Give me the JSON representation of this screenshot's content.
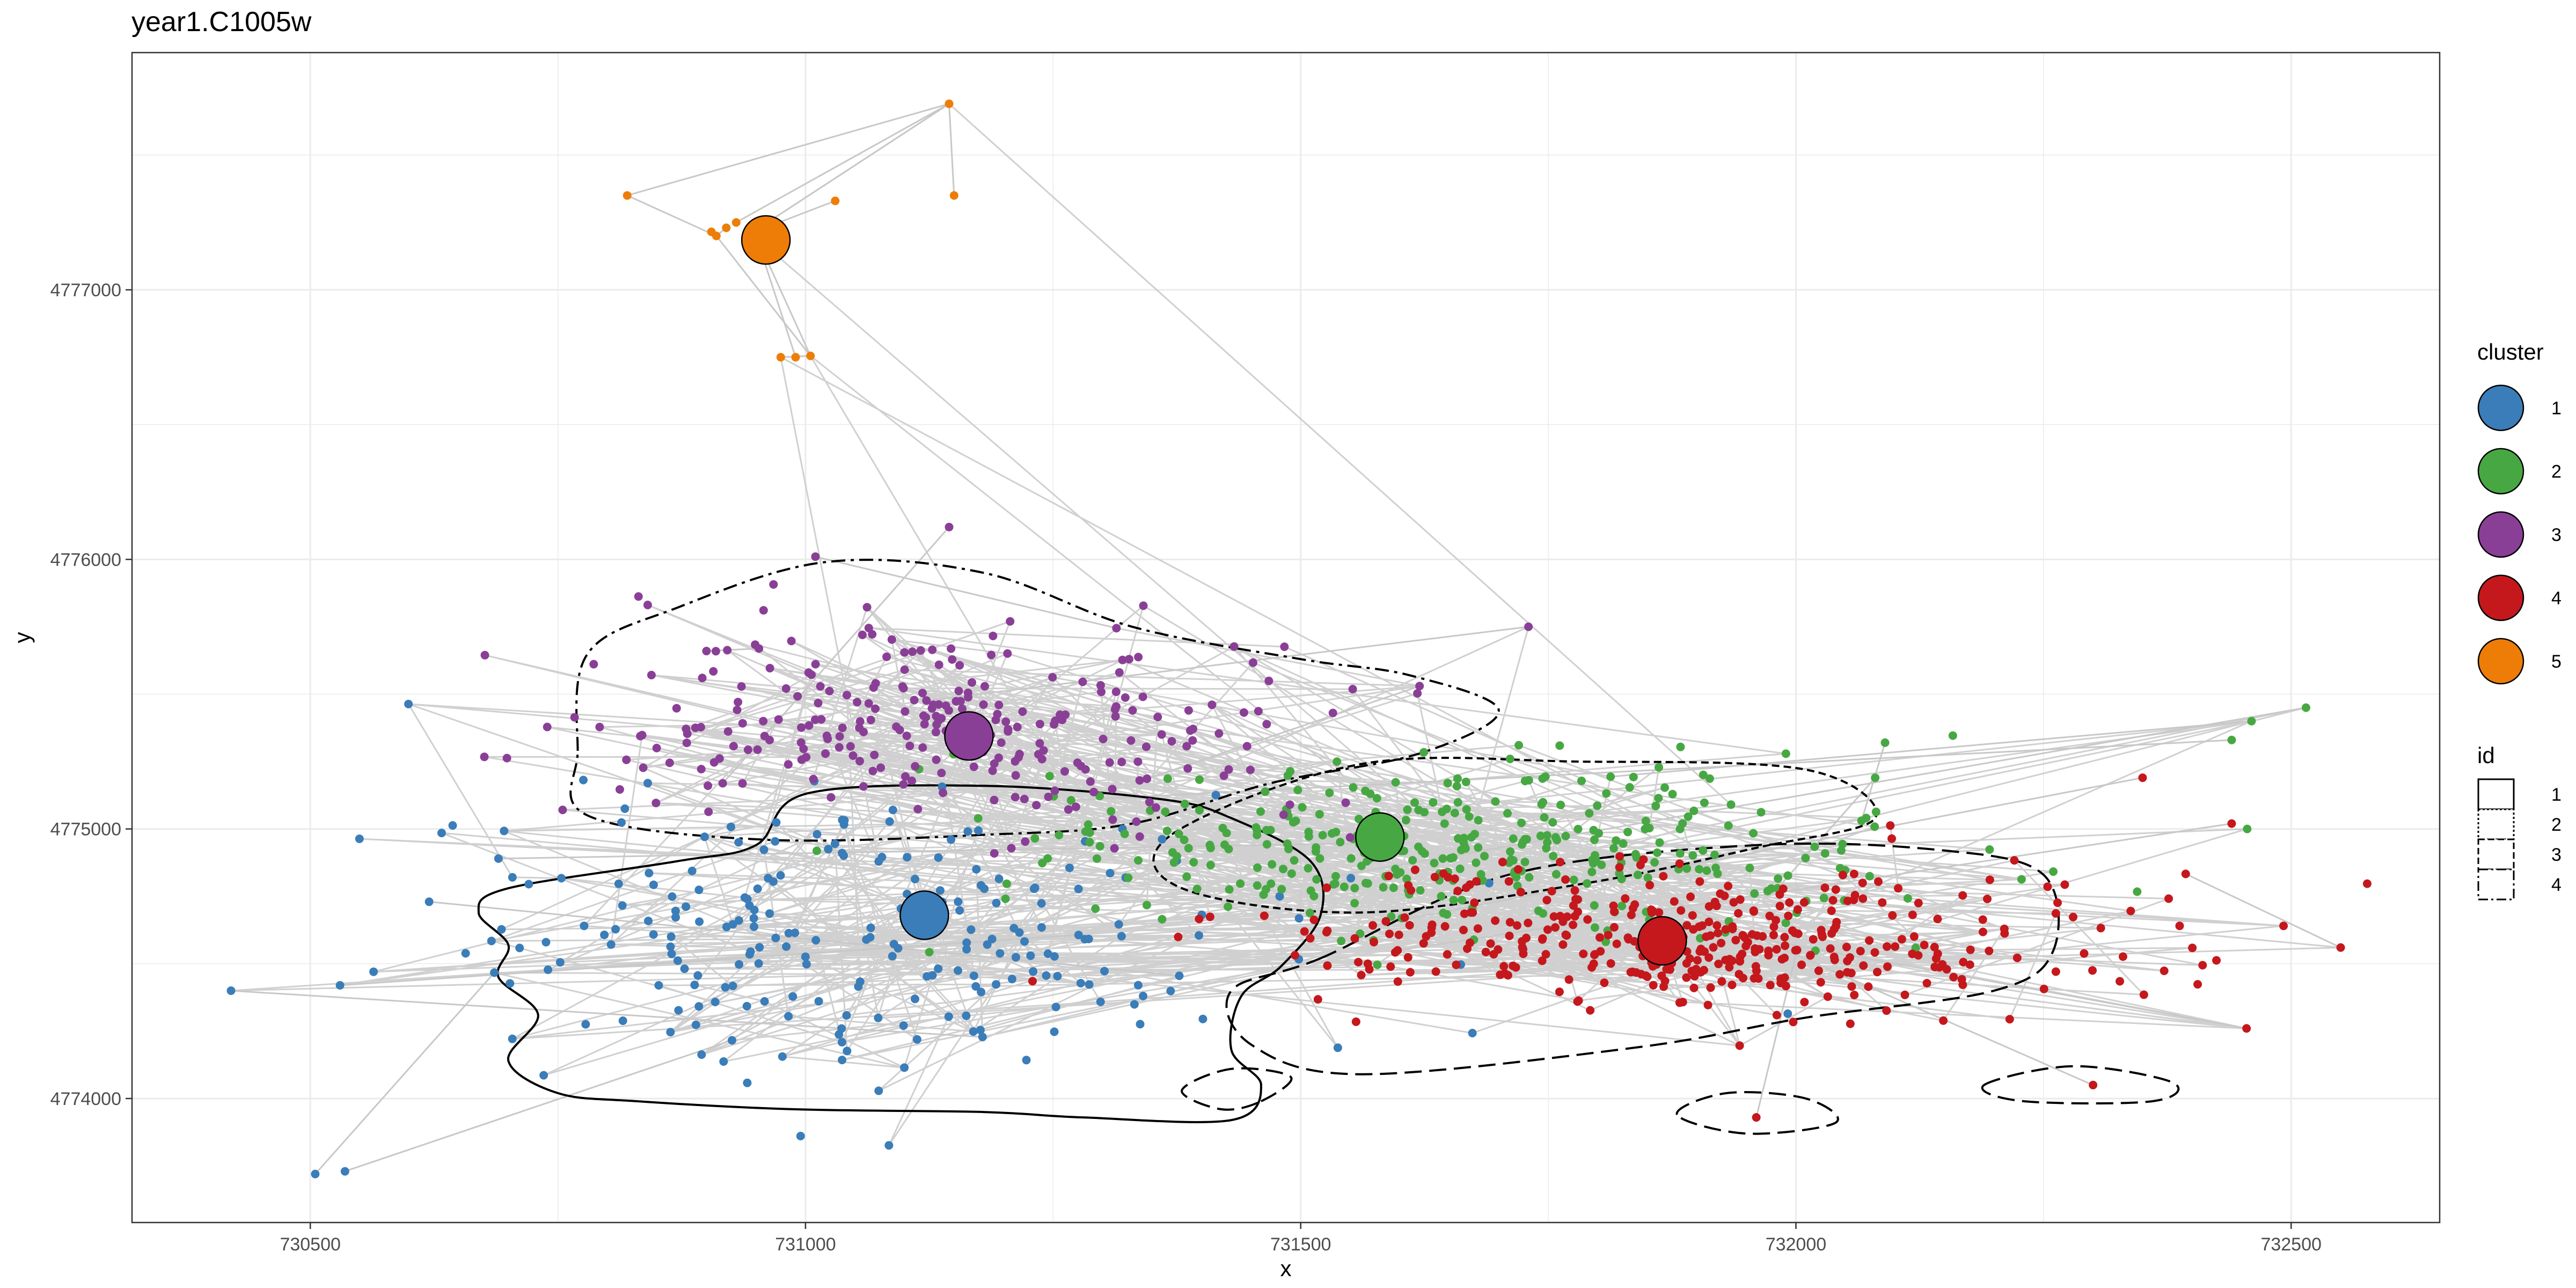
{
  "chart_data": {
    "type": "scatter",
    "title": "year1.C1005w",
    "xlabel": "x",
    "ylabel": "y",
    "xlim": [
      730320,
      732650
    ],
    "ylim": [
      4773540,
      4777880
    ],
    "grid": true,
    "x_ticks": [
      730500,
      731000,
      731500,
      732000,
      732500
    ],
    "y_ticks": [
      4774000,
      4775000,
      4776000,
      4777000
    ],
    "x_tick_labels": [
      "730500",
      "731000",
      "731500",
      "732000",
      "732500"
    ],
    "y_tick_labels": [
      "4774000",
      "4775000",
      "4776000",
      "4777000"
    ],
    "path_color": "#c8c8c8",
    "series": [
      {
        "name": "1",
        "color": "#3a7db8",
        "centroid": [
          731120,
          4774680
        ],
        "center": [
          731050,
          4774600
        ],
        "spread": [
          230,
          280
        ],
        "count": 230,
        "extra_points": [
          [
            730420,
            4774400
          ],
          [
            730505,
            4773720
          ],
          [
            730535,
            4773730
          ],
          [
            730530,
            4774420
          ],
          [
            730620,
            4774730
          ],
          [
            730690,
            4774890
          ]
        ]
      },
      {
        "name": "2",
        "color": "#47a843",
        "centroid": [
          731580,
          4774970
        ],
        "center": [
          731650,
          4774920
        ],
        "spread": [
          220,
          160
        ],
        "count": 360,
        "extra_points": [
          [
            732090,
            4775320
          ],
          [
            732080,
            4775190
          ],
          [
            732440,
            4775330
          ],
          [
            732460,
            4775400
          ],
          [
            732515,
            4775450
          ]
        ]
      },
      {
        "name": "3",
        "color": "#8a3f96",
        "centroid": [
          731165,
          4775345
        ],
        "center": [
          731140,
          4775380
        ],
        "spread": [
          190,
          180
        ],
        "count": 270,
        "extra_points": [
          [
            731010,
            4776010
          ],
          [
            731145,
            4776120
          ],
          [
            730900,
            4775660
          ],
          [
            731730,
            4775750
          ],
          [
            731620,
            4775530
          ]
        ]
      },
      {
        "name": "4",
        "color": "#c4181d",
        "centroid": [
          731865,
          4774585
        ],
        "center": [
          731920,
          4774590
        ],
        "spread": [
          210,
          140
        ],
        "count": 400,
        "extra_points": [
          [
            732440,
            4775020
          ],
          [
            732550,
            4774560
          ],
          [
            732455,
            4774260
          ],
          [
            732350,
            4775190
          ],
          [
            732300,
            4774050
          ],
          [
            731960,
            4773930
          ]
        ]
      },
      {
        "name": "5",
        "color": "#ee7d07",
        "centroid": [
          730960,
          4777185
        ],
        "center": [
          730935,
          4777200
        ],
        "spread": [
          10,
          15
        ],
        "count": 0,
        "extra_points": [
          [
            730820,
            4777350
          ],
          [
            730910,
            4777200
          ],
          [
            730920,
            4777230
          ],
          [
            730930,
            4777250
          ],
          [
            730945,
            4777210
          ],
          [
            730905,
            4777215
          ],
          [
            730950,
            4777200
          ],
          [
            730975,
            4776750
          ],
          [
            730990,
            4776750
          ],
          [
            731005,
            4776755
          ],
          [
            731030,
            4777330
          ],
          [
            731145,
            4777690
          ],
          [
            731150,
            4777350
          ]
        ]
      }
    ],
    "contours": [
      {
        "id": "1",
        "dash": "solid",
        "points": [
          [
            730670,
            4774690
          ],
          [
            730700,
            4774780
          ],
          [
            730870,
            4774880
          ],
          [
            730950,
            4774940
          ],
          [
            731000,
            4775130
          ],
          [
            731180,
            4775160
          ],
          [
            731360,
            4775110
          ],
          [
            731430,
            4775040
          ],
          [
            731510,
            4774880
          ],
          [
            731520,
            4774680
          ],
          [
            731480,
            4774490
          ],
          [
            731440,
            4774380
          ],
          [
            731430,
            4774180
          ],
          [
            731460,
            4774050
          ],
          [
            731430,
            4773920
          ],
          [
            731280,
            4773930
          ],
          [
            731180,
            4773950
          ],
          [
            730990,
            4773960
          ],
          [
            730830,
            4773990
          ],
          [
            730750,
            4774020
          ],
          [
            730700,
            4774140
          ],
          [
            730730,
            4774310
          ],
          [
            730690,
            4774450
          ],
          [
            730700,
            4774570
          ]
        ]
      },
      {
        "id": "2",
        "dash": "14,8",
        "points": [
          [
            731370,
            4774980
          ],
          [
            731560,
            4775240
          ],
          [
            731780,
            4775250
          ],
          [
            732010,
            4775220
          ],
          [
            732080,
            4775040
          ],
          [
            731960,
            4774930
          ],
          [
            731790,
            4774800
          ],
          [
            731560,
            4774690
          ],
          [
            731380,
            4774780
          ]
        ]
      },
      {
        "id": "3",
        "dash": "32,14",
        "points": [
          [
            731520,
            4774520
          ],
          [
            731710,
            4774830
          ],
          [
            731960,
            4774940
          ],
          [
            732150,
            4774920
          ],
          [
            732250,
            4774830
          ],
          [
            732260,
            4774550
          ],
          [
            732200,
            4774400
          ],
          [
            732010,
            4774300
          ],
          [
            731840,
            4774190
          ],
          [
            731560,
            4774090
          ],
          [
            731450,
            4774200
          ],
          [
            731430,
            4774400
          ]
        ]
      },
      {
        "id": "3",
        "dash": "32,14",
        "points": [
          [
            731460,
            4773990
          ],
          [
            731490,
            4774080
          ],
          [
            731430,
            4774110
          ],
          [
            731380,
            4774030
          ],
          [
            731420,
            4773960
          ]
        ]
      },
      {
        "id": "3",
        "dash": "32,14",
        "points": [
          [
            731880,
            4773940
          ],
          [
            731930,
            4774020
          ],
          [
            732010,
            4774000
          ],
          [
            732040,
            4773910
          ],
          [
            731950,
            4773870
          ]
        ]
      },
      {
        "id": "3",
        "dash": "32,14",
        "points": [
          [
            732190,
            4774050
          ],
          [
            732280,
            4774120
          ],
          [
            732380,
            4774060
          ],
          [
            732360,
            4773990
          ],
          [
            732230,
            4773990
          ]
        ]
      },
      {
        "id": "4",
        "dash": "26,10,6,10",
        "points": [
          [
            730770,
            4775290
          ],
          [
            730780,
            4775650
          ],
          [
            730870,
            4775820
          ],
          [
            731020,
            4775990
          ],
          [
            731180,
            4775950
          ],
          [
            731330,
            4775750
          ],
          [
            731500,
            4775630
          ],
          [
            731610,
            4775570
          ],
          [
            731700,
            4775440
          ],
          [
            731620,
            4775280
          ],
          [
            731470,
            4775170
          ],
          [
            731330,
            4775020
          ],
          [
            731190,
            4774980
          ],
          [
            730960,
            4774960
          ],
          [
            730780,
            4775050
          ]
        ]
      }
    ],
    "legend": {
      "placement": "right",
      "cluster_title": "cluster",
      "cluster_entries": [
        {
          "label": "1",
          "color": "#3a7db8"
        },
        {
          "label": "2",
          "color": "#47a843"
        },
        {
          "label": "3",
          "color": "#8a3f96"
        },
        {
          "label": "4",
          "color": "#c4181d"
        },
        {
          "label": "5",
          "color": "#ee7d07"
        }
      ],
      "id_title": "id",
      "id_entries": [
        {
          "label": "1",
          "dash": "solid"
        },
        {
          "label": "2",
          "dash": "4,4"
        },
        {
          "label": "3",
          "dash": "12,6"
        },
        {
          "label": "4",
          "dash": "18,6,4,6"
        }
      ]
    }
  }
}
